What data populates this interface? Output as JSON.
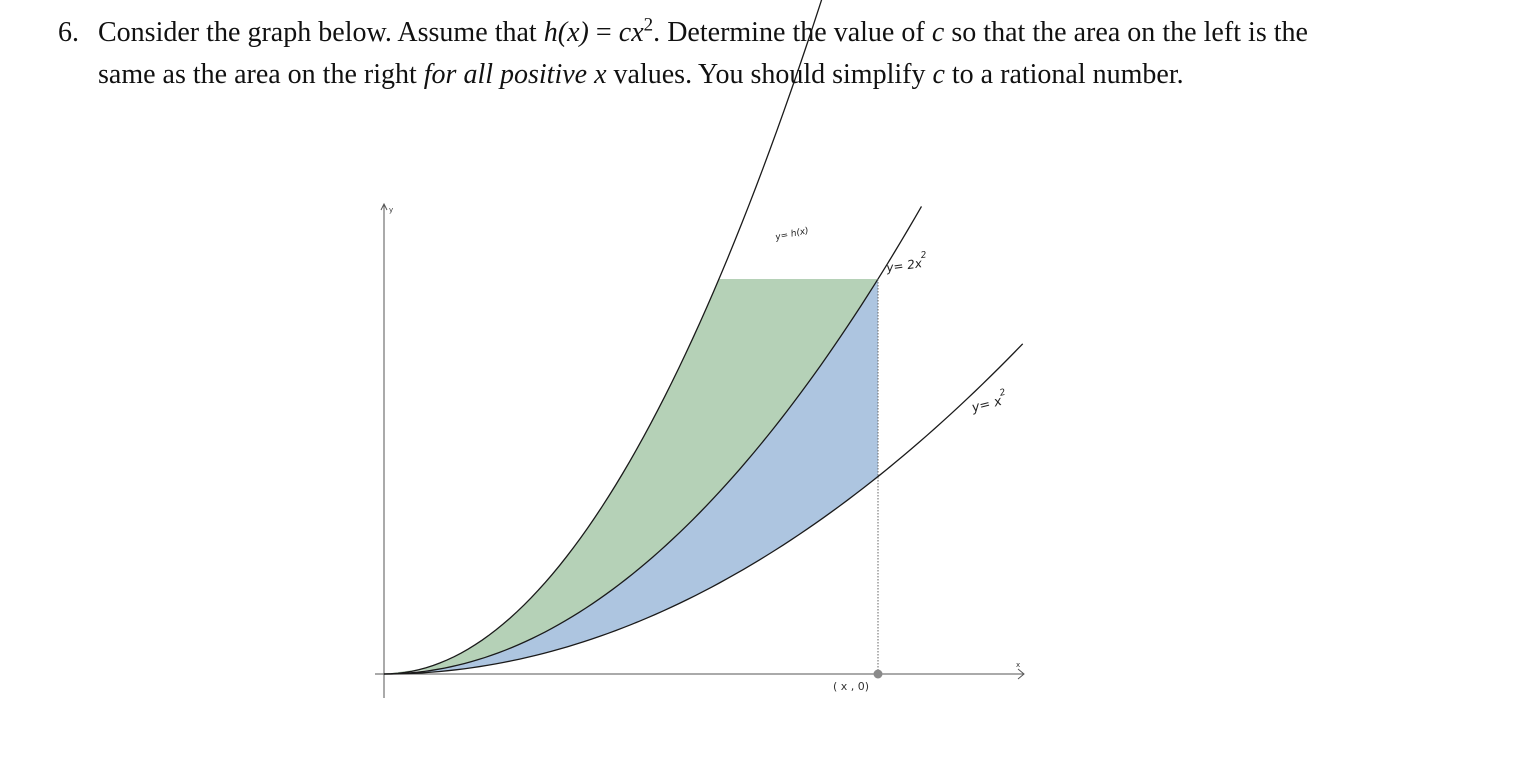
{
  "problem": {
    "number": "6.",
    "text_before_h": "Consider the graph below. Assume that ",
    "h_expr": "h(x)",
    "equals": " = ",
    "c_expr": "cx",
    "c_exp": "2",
    "text_mid1": ". Determine the value of ",
    "c_var": "c",
    "text_mid2": " so that the area on the left is the same as the area on the right ",
    "emphasis": "for all positive ",
    "x_var": "x",
    "text_mid3": " values. You should simplify ",
    "c_var2": "c",
    "text_end": " to a rational number."
  },
  "chart_data": {
    "type": "area",
    "title": "",
    "xlabel": "x",
    "ylabel": "y",
    "grid": false,
    "curves": [
      {
        "name": "y= h(x)",
        "formula": "h(x)"
      },
      {
        "name": "y= 2x²",
        "formula": "2x^2"
      },
      {
        "name": "y= x²",
        "formula": "x^2"
      }
    ],
    "regions": [
      {
        "name": "left area",
        "color": "#b5d1b7",
        "between": [
          "h(x)",
          "2x^2"
        ]
      },
      {
        "name": "right area",
        "color": "#adc5e0",
        "between": [
          "2x^2",
          "x^2"
        ]
      }
    ],
    "point_label": "( x , 0)",
    "labels": {
      "h_curve": "y= h(x)",
      "two_x_sq": "y= 2x",
      "two_x_sq_exp": "2",
      "x_sq": "y= x",
      "x_sq_exp": "2",
      "y_axis": "y",
      "x_axis": "x"
    }
  }
}
